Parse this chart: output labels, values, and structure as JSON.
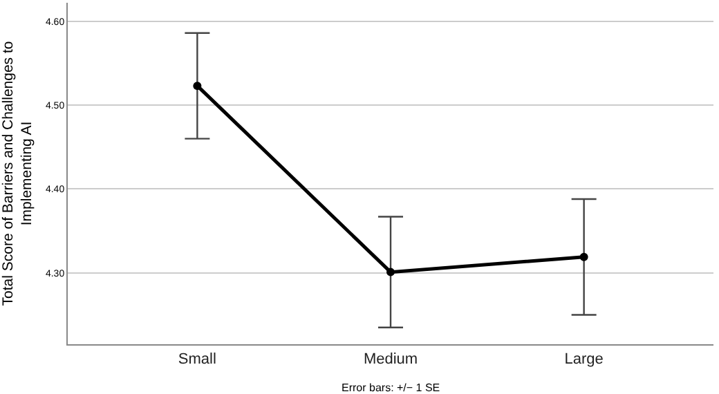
{
  "chart_data": {
    "type": "line",
    "ylabel": "Total Score of Barriers and Challenges to Implementing AI",
    "categories": [
      "Small",
      "Medium",
      "Large"
    ],
    "series": [
      {
        "color": "#000000",
        "values": [
          4.523,
          4.301,
          4.319
        ],
        "errors": [
          0.063,
          0.066,
          0.069
        ]
      }
    ],
    "ylim": [
      4.215,
      4.622
    ],
    "yticks": [
      {
        "value": 4.3,
        "label": "4.30"
      },
      {
        "value": 4.4,
        "label": "4.40"
      },
      {
        "value": 4.5,
        "label": "4.50"
      },
      {
        "value": 4.6,
        "label": "4.60"
      }
    ],
    "grid": "y",
    "marker": "circle",
    "line_style": "solid",
    "legend": false,
    "annotations": [
      "Error bars: +/− 1 SE"
    ]
  }
}
